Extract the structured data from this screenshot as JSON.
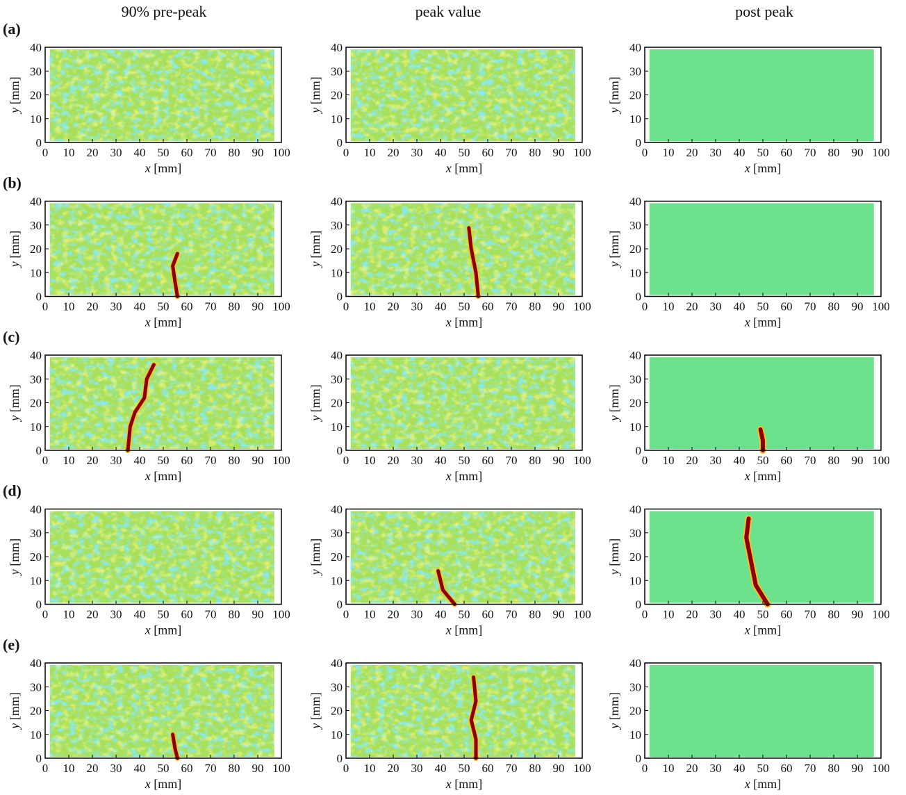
{
  "columns": [
    "90% pre-peak",
    "peak value",
    "post peak"
  ],
  "rows": [
    "(a)",
    "(b)",
    "(c)",
    "(d)",
    "(e)"
  ],
  "chart_data": [
    {
      "type": "heatmap",
      "xlim": [
        0,
        100
      ],
      "xticks": [
        0,
        10,
        20,
        30,
        40,
        50,
        60,
        70,
        80,
        90,
        100
      ],
      "ylim": [
        0,
        40
      ],
      "yticks": [
        0,
        10,
        20,
        30,
        40
      ],
      "xlabel": {
        "symbol": "x",
        "unit": "[mm]"
      },
      "ylabel": {
        "symbol": "y",
        "unit": "[mm]"
      }
    },
    {
      "type": "heatmap",
      "xlim": [
        0,
        100
      ],
      "xticks": [
        0,
        10,
        20,
        30,
        40,
        50,
        60,
        70,
        80,
        90,
        100
      ],
      "ylim": [
        0,
        40
      ],
      "yticks": [
        0,
        10,
        20,
        30,
        40
      ],
      "xlabel": {
        "symbol": "x",
        "unit": "[mm]"
      },
      "ylabel": {
        "symbol": "y",
        "unit": "[mm]"
      }
    },
    {
      "type": "heatmap",
      "xlim": [
        0,
        100
      ],
      "xticks": [
        0,
        10,
        20,
        30,
        40,
        50,
        60,
        70,
        80,
        90,
        100
      ],
      "ylim": [
        0,
        40
      ],
      "yticks": [
        0,
        10,
        20,
        30,
        40
      ],
      "xlabel": {
        "symbol": "x",
        "unit": "[mm]"
      },
      "ylabel": {
        "symbol": "y",
        "unit": "[mm]"
      }
    },
    {
      "type": "heatmap",
      "xlim": [
        0,
        100
      ],
      "xticks": [
        0,
        10,
        20,
        30,
        40,
        50,
        60,
        70,
        80,
        90,
        100
      ],
      "ylim": [
        0,
        40
      ],
      "yticks": [
        0,
        10,
        20,
        30,
        40
      ],
      "xlabel": {
        "symbol": "x",
        "unit": "[mm]"
      },
      "ylabel": {
        "symbol": "y",
        "unit": "[mm]"
      }
    },
    {
      "type": "heatmap",
      "xlim": [
        0,
        100
      ],
      "xticks": [
        0,
        10,
        20,
        30,
        40,
        50,
        60,
        70,
        80,
        90,
        100
      ],
      "ylim": [
        0,
        40
      ],
      "yticks": [
        0,
        10,
        20,
        30,
        40
      ],
      "xlabel": {
        "symbol": "x",
        "unit": "[mm]"
      },
      "ylabel": {
        "symbol": "y",
        "unit": "[mm]"
      }
    },
    {
      "type": "heatmap",
      "xlim": [
        0,
        100
      ],
      "xticks": [
        0,
        10,
        20,
        30,
        40,
        50,
        60,
        70,
        80,
        90,
        100
      ],
      "ylim": [
        0,
        40
      ],
      "yticks": [
        0,
        10,
        20,
        30,
        40
      ],
      "xlabel": {
        "symbol": "x",
        "unit": "[mm]"
      },
      "ylabel": {
        "symbol": "y",
        "unit": "[mm]"
      }
    },
    {
      "type": "heatmap",
      "xlim": [
        0,
        100
      ],
      "xticks": [
        0,
        10,
        20,
        30,
        40,
        50,
        60,
        70,
        80,
        90,
        100
      ],
      "ylim": [
        0,
        40
      ],
      "yticks": [
        0,
        10,
        20,
        30,
        40
      ],
      "xlabel": {
        "symbol": "x",
        "unit": "[mm]"
      },
      "ylabel": {
        "symbol": "y",
        "unit": "[mm]"
      }
    },
    {
      "type": "heatmap",
      "xlim": [
        0,
        100
      ],
      "xticks": [
        0,
        10,
        20,
        30,
        40,
        50,
        60,
        70,
        80,
        90,
        100
      ],
      "ylim": [
        0,
        40
      ],
      "yticks": [
        0,
        10,
        20,
        30,
        40
      ],
      "xlabel": {
        "symbol": "x",
        "unit": "[mm]"
      },
      "ylabel": {
        "symbol": "y",
        "unit": "[mm]"
      }
    },
    {
      "type": "heatmap",
      "xlim": [
        0,
        100
      ],
      "xticks": [
        0,
        10,
        20,
        30,
        40,
        50,
        60,
        70,
        80,
        90,
        100
      ],
      "ylim": [
        0,
        40
      ],
      "yticks": [
        0,
        10,
        20,
        30,
        40
      ],
      "xlabel": {
        "symbol": "x",
        "unit": "[mm]"
      },
      "ylabel": {
        "symbol": "y",
        "unit": "[mm]"
      }
    },
    {
      "type": "heatmap",
      "xlim": [
        0,
        100
      ],
      "xticks": [
        0,
        10,
        20,
        30,
        40,
        50,
        60,
        70,
        80,
        90,
        100
      ],
      "ylim": [
        0,
        40
      ],
      "yticks": [
        0,
        10,
        20,
        30,
        40
      ],
      "xlabel": {
        "symbol": "x",
        "unit": "[mm]"
      },
      "ylabel": {
        "symbol": "y",
        "unit": "[mm]"
      }
    },
    {
      "type": "heatmap",
      "xlim": [
        0,
        100
      ],
      "xticks": [
        0,
        10,
        20,
        30,
        40,
        50,
        60,
        70,
        80,
        90,
        100
      ],
      "ylim": [
        0,
        40
      ],
      "yticks": [
        0,
        10,
        20,
        30,
        40
      ],
      "xlabel": {
        "symbol": "x",
        "unit": "[mm]"
      },
      "ylabel": {
        "symbol": "y",
        "unit": "[mm]"
      }
    },
    {
      "type": "heatmap",
      "xlim": [
        0,
        100
      ],
      "xticks": [
        0,
        10,
        20,
        30,
        40,
        50,
        60,
        70,
        80,
        90,
        100
      ],
      "ylim": [
        0,
        40
      ],
      "yticks": [
        0,
        10,
        20,
        30,
        40
      ],
      "xlabel": {
        "symbol": "x",
        "unit": "[mm]"
      },
      "ylabel": {
        "symbol": "y",
        "unit": "[mm]"
      }
    },
    {
      "type": "heatmap",
      "xlim": [
        0,
        100
      ],
      "xticks": [
        0,
        10,
        20,
        30,
        40,
        50,
        60,
        70,
        80,
        90,
        100
      ],
      "ylim": [
        0,
        40
      ],
      "yticks": [
        0,
        10,
        20,
        30,
        40
      ],
      "xlabel": {
        "symbol": "x",
        "unit": "[mm]"
      },
      "ylabel": {
        "symbol": "y",
        "unit": "[mm]"
      }
    },
    {
      "type": "heatmap",
      "xlim": [
        0,
        100
      ],
      "xticks": [
        0,
        10,
        20,
        30,
        40,
        50,
        60,
        70,
        80,
        90,
        100
      ],
      "ylim": [
        0,
        40
      ],
      "yticks": [
        0,
        10,
        20,
        30,
        40
      ],
      "xlabel": {
        "symbol": "x",
        "unit": "[mm]"
      },
      "ylabel": {
        "symbol": "y",
        "unit": "[mm]"
      }
    },
    {
      "type": "heatmap",
      "xlim": [
        0,
        100
      ],
      "xticks": [
        0,
        10,
        20,
        30,
        40,
        50,
        60,
        70,
        80,
        90,
        100
      ],
      "ylim": [
        0,
        40
      ],
      "yticks": [
        0,
        10,
        20,
        30,
        40
      ],
      "xlabel": {
        "symbol": "x",
        "unit": "[mm]"
      },
      "ylabel": {
        "symbol": "y",
        "unit": "[mm]"
      }
    }
  ]
}
